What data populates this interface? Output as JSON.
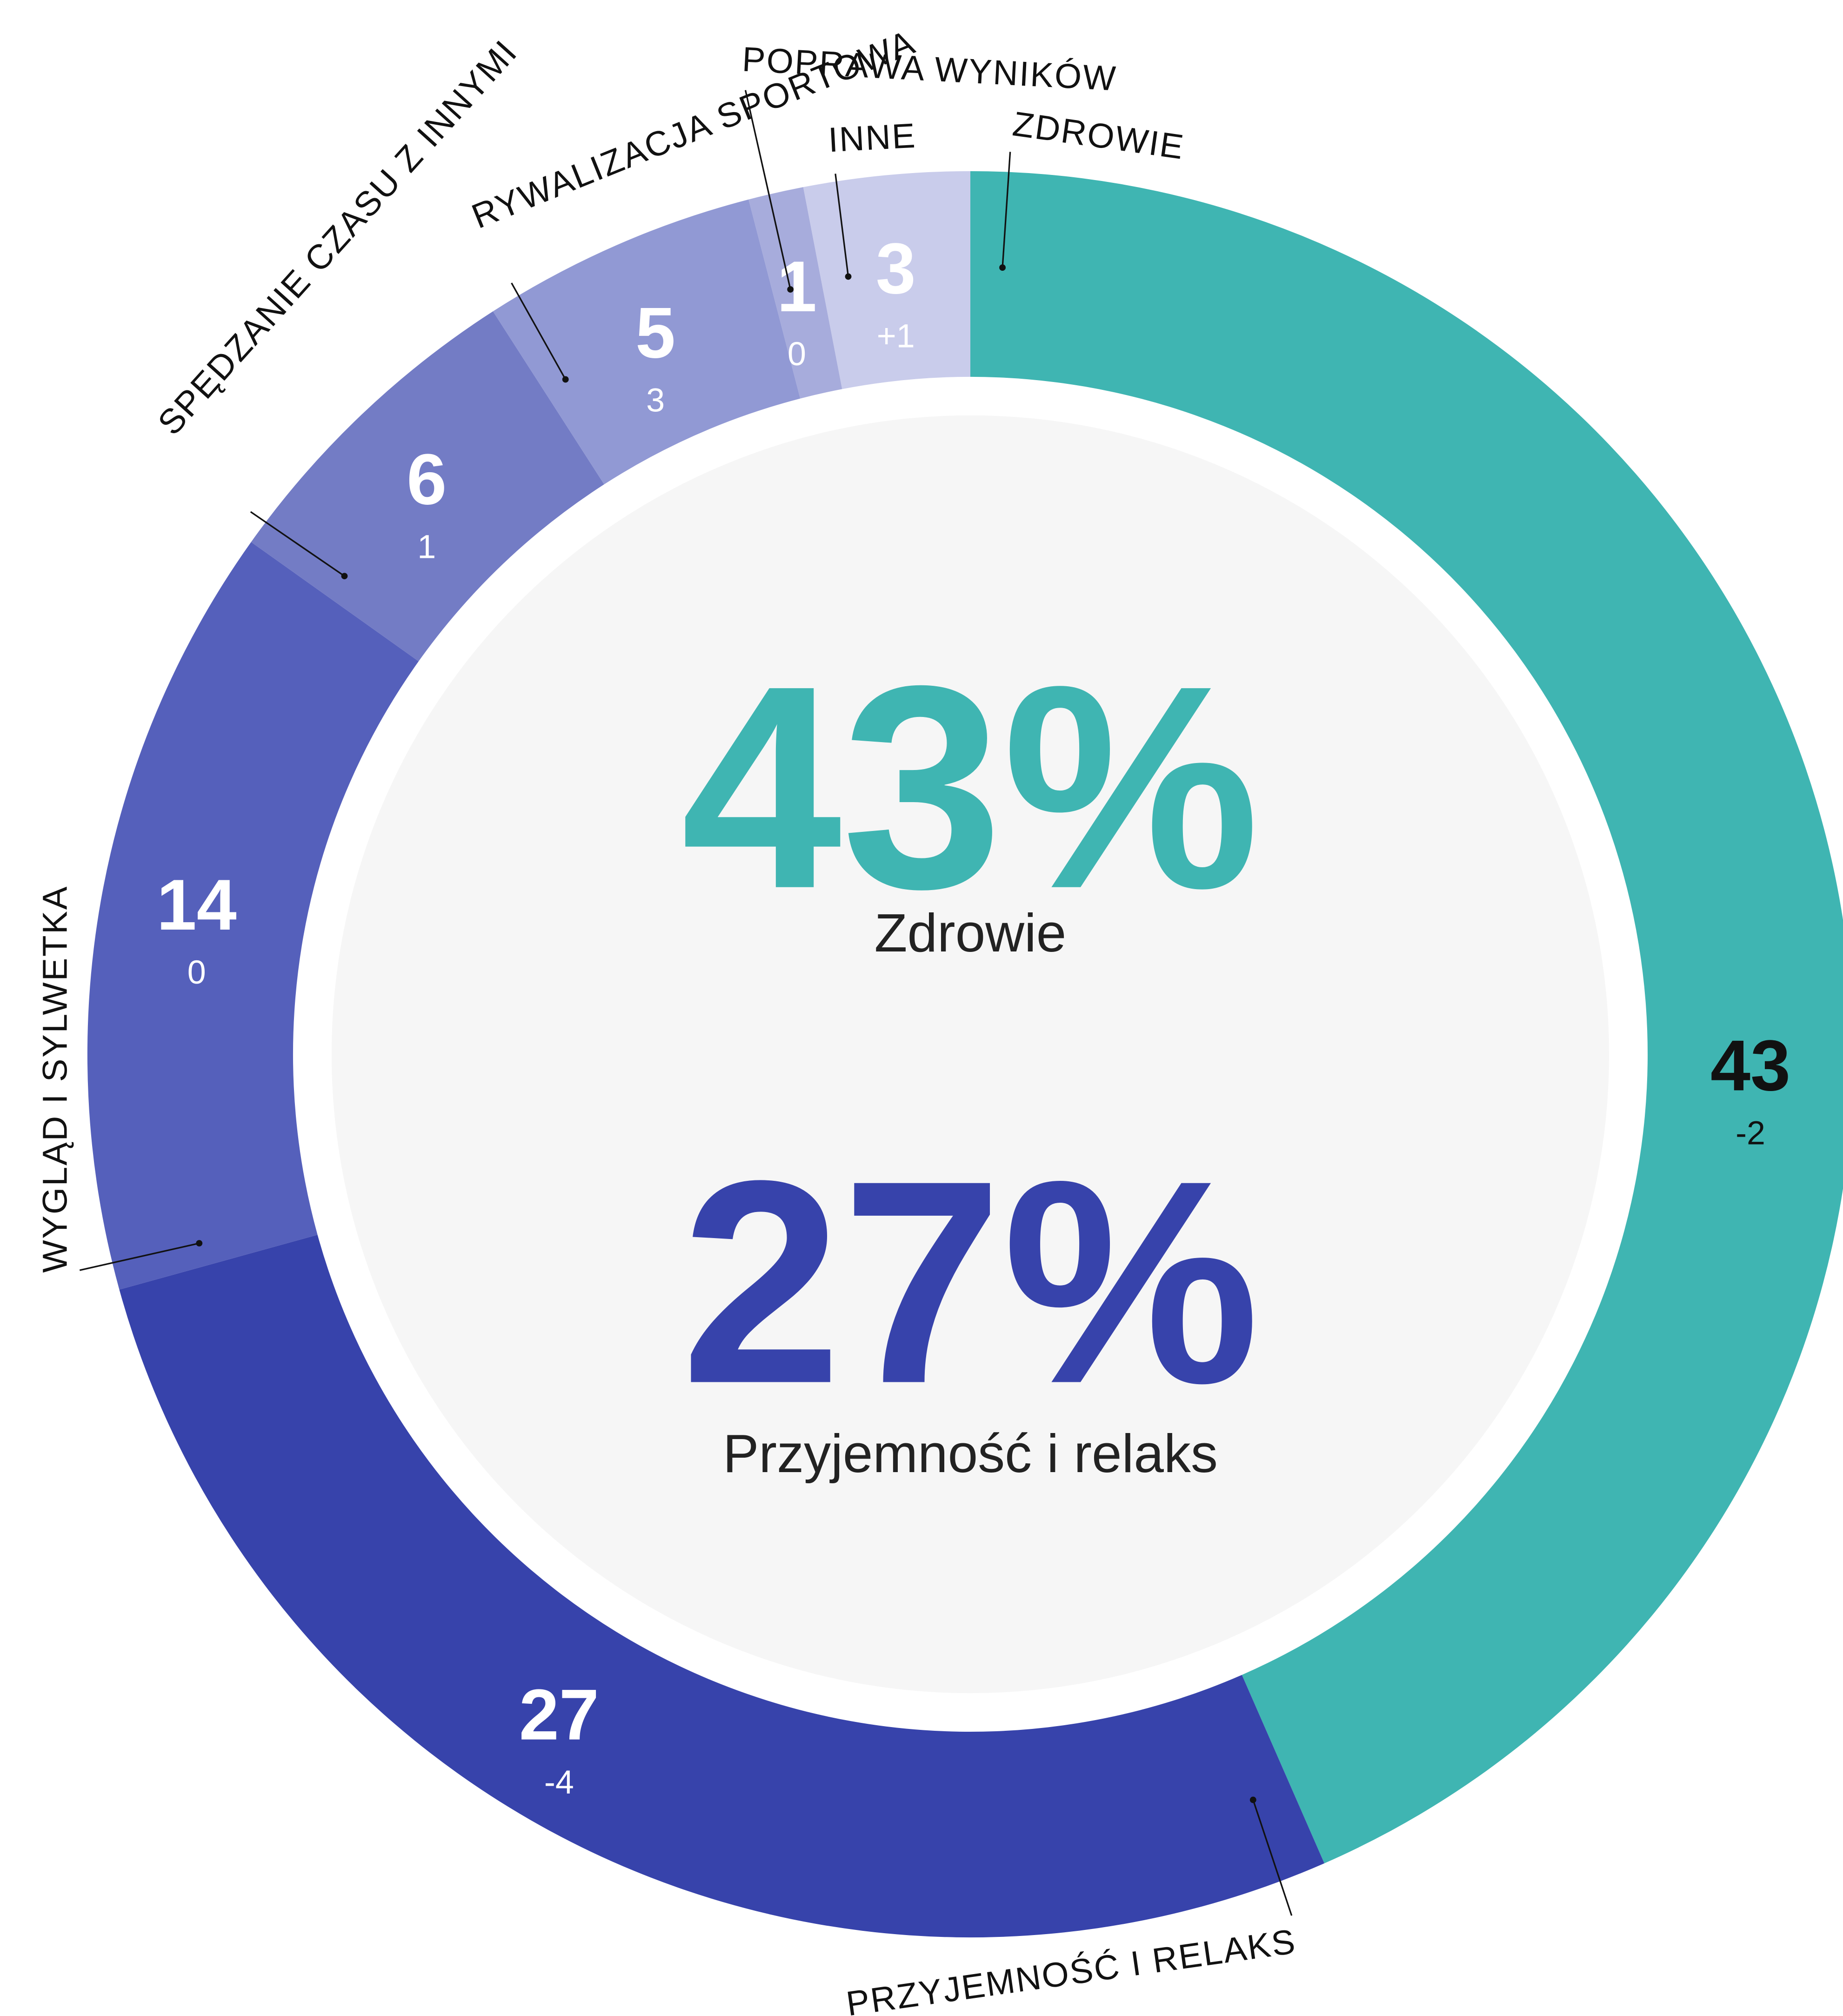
{
  "chart_data": {
    "type": "donut",
    "categories": [
      "ZDROWIE",
      "PRZYJEMNOŚĆ I RELAKS",
      "WYGLĄD I SYLWETKA",
      "SPĘDZANIE CZASU Z INNYMI",
      "RYWALIZACJA SPORTOWA",
      "POPRAWA WYNIKÓW",
      "INNE"
    ],
    "values": [
      43,
      27,
      14,
      6,
      5,
      1,
      3
    ],
    "change_labels": [
      "-2",
      "-4",
      "0",
      "1",
      "3",
      "0",
      "+1"
    ],
    "colors": [
      "#3fb5b2",
      "#3743ab",
      "#5560bb",
      "#737cc5",
      "#9199d4",
      "#a7acdc",
      "#c9cceb"
    ],
    "center": [
      {
        "value_label": "43%",
        "name": "Zdrowie",
        "color": "#3fb5b2"
      },
      {
        "value_label": "27%",
        "name": "Przyjemność i relaks",
        "color": "#3743ab"
      }
    ]
  }
}
